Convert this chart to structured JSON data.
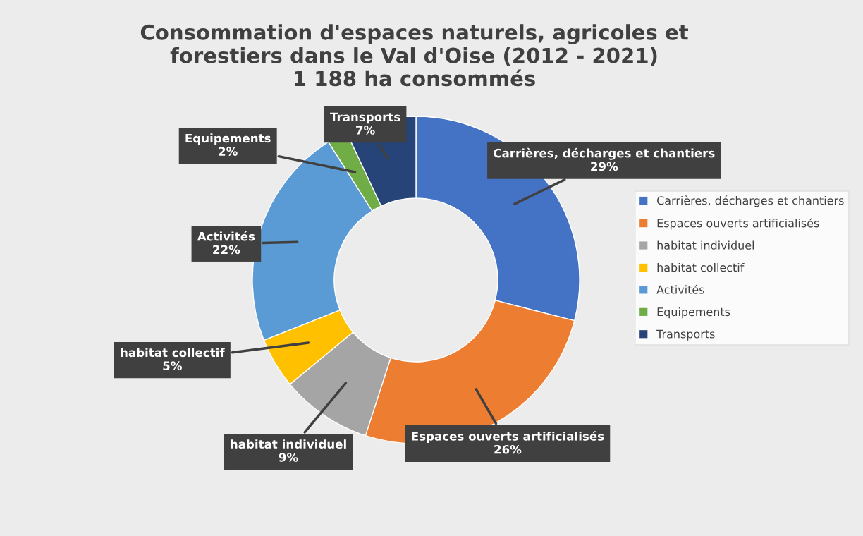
{
  "chart_data": {
    "type": "donut",
    "title": "Consommation d'espaces naturels, agricoles et\nforestiers dans le Val d'Oise (2012 - 2021)\n1 188 ha consommés",
    "categories": [
      "Carrières, décharges et chantiers",
      "Espaces ouverts artificialisés",
      "habitat individuel",
      "habitat collectif",
      "Activités",
      "Equipements",
      "Transports"
    ],
    "values": [
      29,
      26,
      9,
      5,
      22,
      2,
      7
    ],
    "colors": [
      "#4472c4",
      "#ed7d31",
      "#a5a5a5",
      "#ffc000",
      "#5b9bd5",
      "#70ad47",
      "#264478"
    ],
    "value_labels": [
      "29%",
      "26%",
      "9%",
      "5%",
      "22%",
      "2%",
      "7%"
    ],
    "legend": "right"
  }
}
